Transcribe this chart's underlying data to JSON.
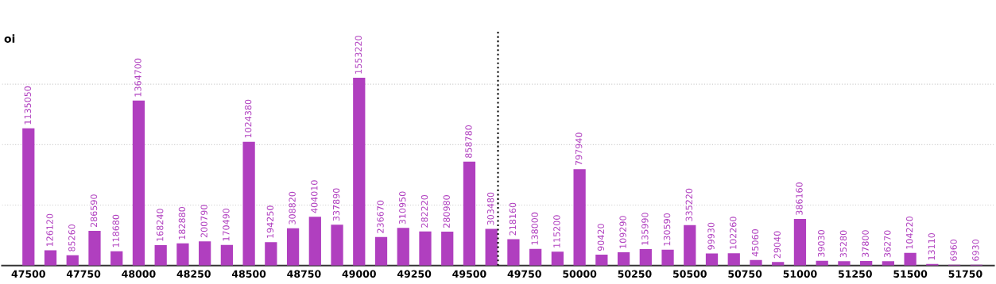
{
  "chart_data": {
    "type": "bar",
    "ylabel": "oi",
    "x": [
      47500,
      47600,
      47700,
      47800,
      47900,
      48000,
      48100,
      48200,
      48300,
      48400,
      48500,
      48600,
      48700,
      48800,
      48900,
      49000,
      49100,
      49200,
      49300,
      49400,
      49500,
      49600,
      49700,
      49800,
      49900,
      50000,
      50100,
      50200,
      50300,
      50400,
      50500,
      50600,
      50700,
      50800,
      50900,
      51000,
      51100,
      51200,
      51300,
      51400,
      51500,
      51600,
      51700,
      51800
    ],
    "series": [
      {
        "color": "#b03fbf",
        "values": [
          1135050,
          126120,
          85260,
          286590,
          118680,
          1364700,
          168240,
          182880,
          200790,
          170490,
          1024380,
          194250,
          308820,
          404010,
          337890,
          1553220,
          236670,
          310950,
          282220,
          280980,
          858780,
          303480,
          218160,
          138000,
          115200,
          797940,
          90420,
          109290,
          135990,
          130590,
          335220,
          99930,
          102260,
          45060,
          29040,
          386160,
          39030,
          35280,
          37800,
          36270,
          104220,
          13110,
          6960,
          6930
        ]
      }
    ],
    "data_labels": true,
    "xlim": [
      47380,
      51880
    ],
    "xticks": [
      47500,
      47750,
      48000,
      48250,
      48500,
      48750,
      49000,
      49250,
      49500,
      49750,
      50000,
      50250,
      50500,
      50750,
      51000,
      51250,
      51500,
      51750
    ],
    "ylim": [
      0,
      1950000
    ],
    "yticks": [
      {
        "value": 0,
        "label": null
      },
      {
        "value": 500000,
        "label": null
      },
      {
        "value": 1000000,
        "label": null
      },
      {
        "value": 1500000,
        "label": null
      }
    ],
    "grid": "y",
    "ref_lines": [
      {
        "axis": "x",
        "value": 49630,
        "color": "#000000",
        "line_style": "dotted"
      }
    ]
  }
}
